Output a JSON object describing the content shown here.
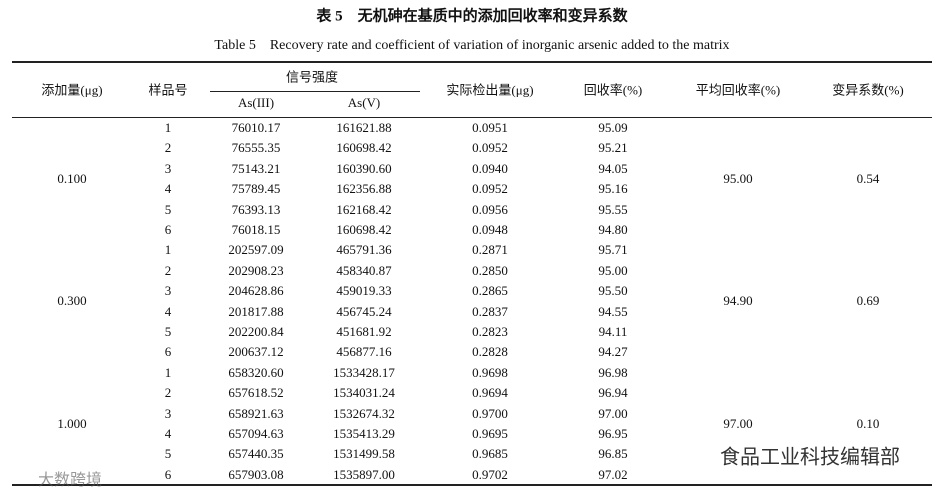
{
  "title_cn": "表 5　无机砷在基质中的添加回收率和变异系数",
  "title_en": "Table 5　Recovery rate and coefficient of variation of inorganic arsenic added to the matrix",
  "header": {
    "added": "添加量(μg)",
    "sample": "样品号",
    "signal": "信号强度",
    "as3": "As(III)",
    "as5": "As(V)",
    "detected": "实际检出量(μg)",
    "recovery": "回收率(%)",
    "mean_recovery": "平均回收率(%)",
    "cv": "变异系数(%)"
  },
  "groups": [
    {
      "added": "0.100",
      "mean_recovery": "95.00",
      "cv": "0.54",
      "rows": [
        [
          "1",
          "76010.17",
          "161621.88",
          "0.0951",
          "95.09"
        ],
        [
          "2",
          "76555.35",
          "160698.42",
          "0.0952",
          "95.21"
        ],
        [
          "3",
          "75143.21",
          "160390.60",
          "0.0940",
          "94.05"
        ],
        [
          "4",
          "75789.45",
          "162356.88",
          "0.0952",
          "95.16"
        ],
        [
          "5",
          "76393.13",
          "162168.42",
          "0.0956",
          "95.55"
        ],
        [
          "6",
          "76018.15",
          "160698.42",
          "0.0948",
          "94.80"
        ]
      ]
    },
    {
      "added": "0.300",
      "mean_recovery": "94.90",
      "cv": "0.69",
      "rows": [
        [
          "1",
          "202597.09",
          "465791.36",
          "0.2871",
          "95.71"
        ],
        [
          "2",
          "202908.23",
          "458340.87",
          "0.2850",
          "95.00"
        ],
        [
          "3",
          "204628.86",
          "459019.33",
          "0.2865",
          "95.50"
        ],
        [
          "4",
          "201817.88",
          "456745.24",
          "0.2837",
          "94.55"
        ],
        [
          "5",
          "202200.84",
          "451681.92",
          "0.2823",
          "94.11"
        ],
        [
          "6",
          "200637.12",
          "456877.16",
          "0.2828",
          "94.27"
        ]
      ]
    },
    {
      "added": "1.000",
      "mean_recovery": "97.00",
      "cv": "0.10",
      "rows": [
        [
          "1",
          "658320.60",
          "1533428.17",
          "0.9698",
          "96.98"
        ],
        [
          "2",
          "657618.52",
          "1534031.24",
          "0.9694",
          "96.94"
        ],
        [
          "3",
          "658921.63",
          "1532674.32",
          "0.9700",
          "97.00"
        ],
        [
          "4",
          "657094.63",
          "1535413.29",
          "0.9695",
          "96.95"
        ],
        [
          "5",
          "657440.35",
          "1531499.58",
          "0.9685",
          "96.85"
        ],
        [
          "6",
          "657903.08",
          "1535897.00",
          "0.9702",
          "97.02"
        ]
      ]
    }
  ],
  "watermarks": {
    "left": "大数跨境",
    "right": "食品工业科技编辑部"
  }
}
